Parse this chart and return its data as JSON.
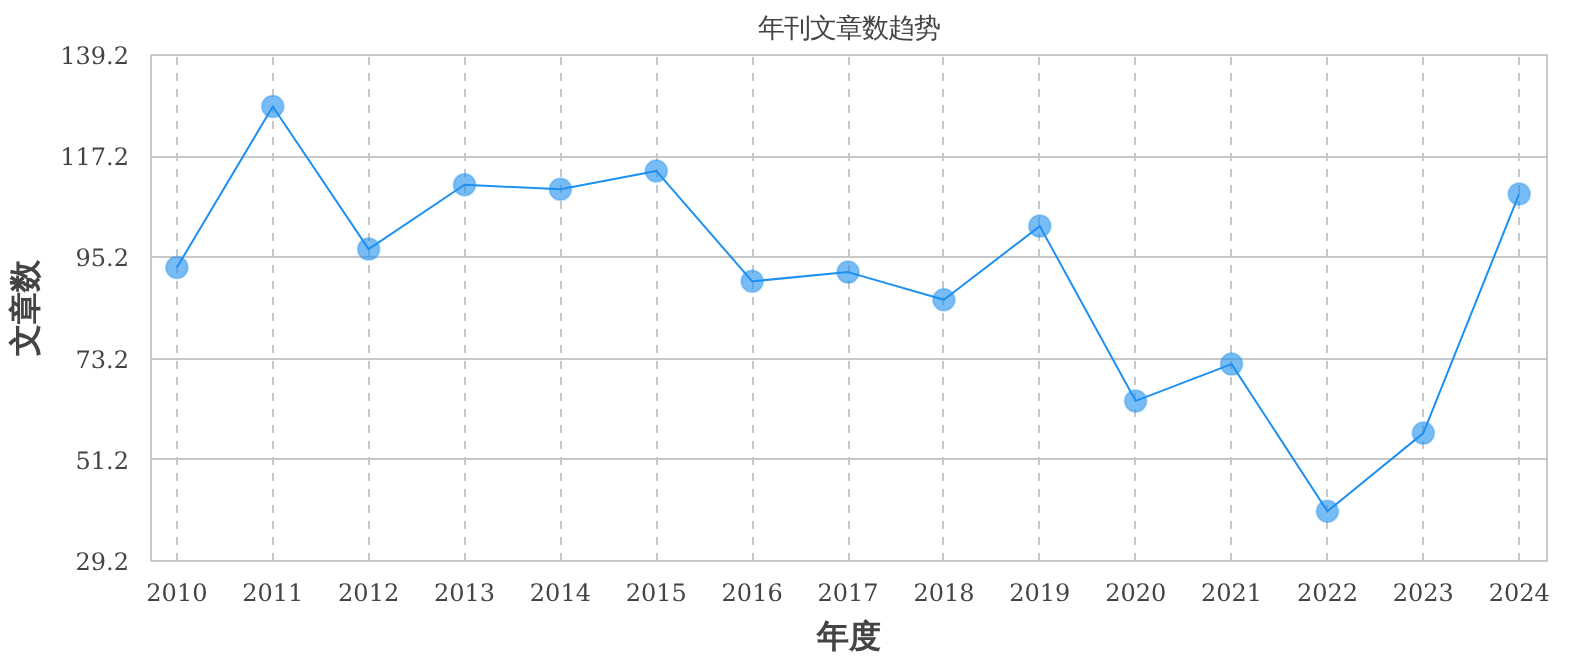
{
  "chart_data": {
    "type": "line",
    "title": "年刊文章数趋势",
    "xlabel": "年度",
    "ylabel": "文章数",
    "categories": [
      "2010",
      "2011",
      "2012",
      "2013",
      "2014",
      "2015",
      "2016",
      "2017",
      "2018",
      "2019",
      "2020",
      "2021",
      "2022",
      "2023",
      "2024"
    ],
    "series": [
      {
        "color": "#1e90f0",
        "values": [
          93,
          128,
          97,
          111,
          110,
          114,
          90,
          92,
          86,
          102,
          64,
          72,
          40,
          57,
          109
        ]
      }
    ],
    "ylim": [
      29.2,
      139.2
    ],
    "yticks": [
      29.2,
      51.2,
      73.2,
      95.2,
      117.2,
      139.2
    ],
    "grid": true,
    "marker": "circle",
    "line_style": "solid"
  }
}
